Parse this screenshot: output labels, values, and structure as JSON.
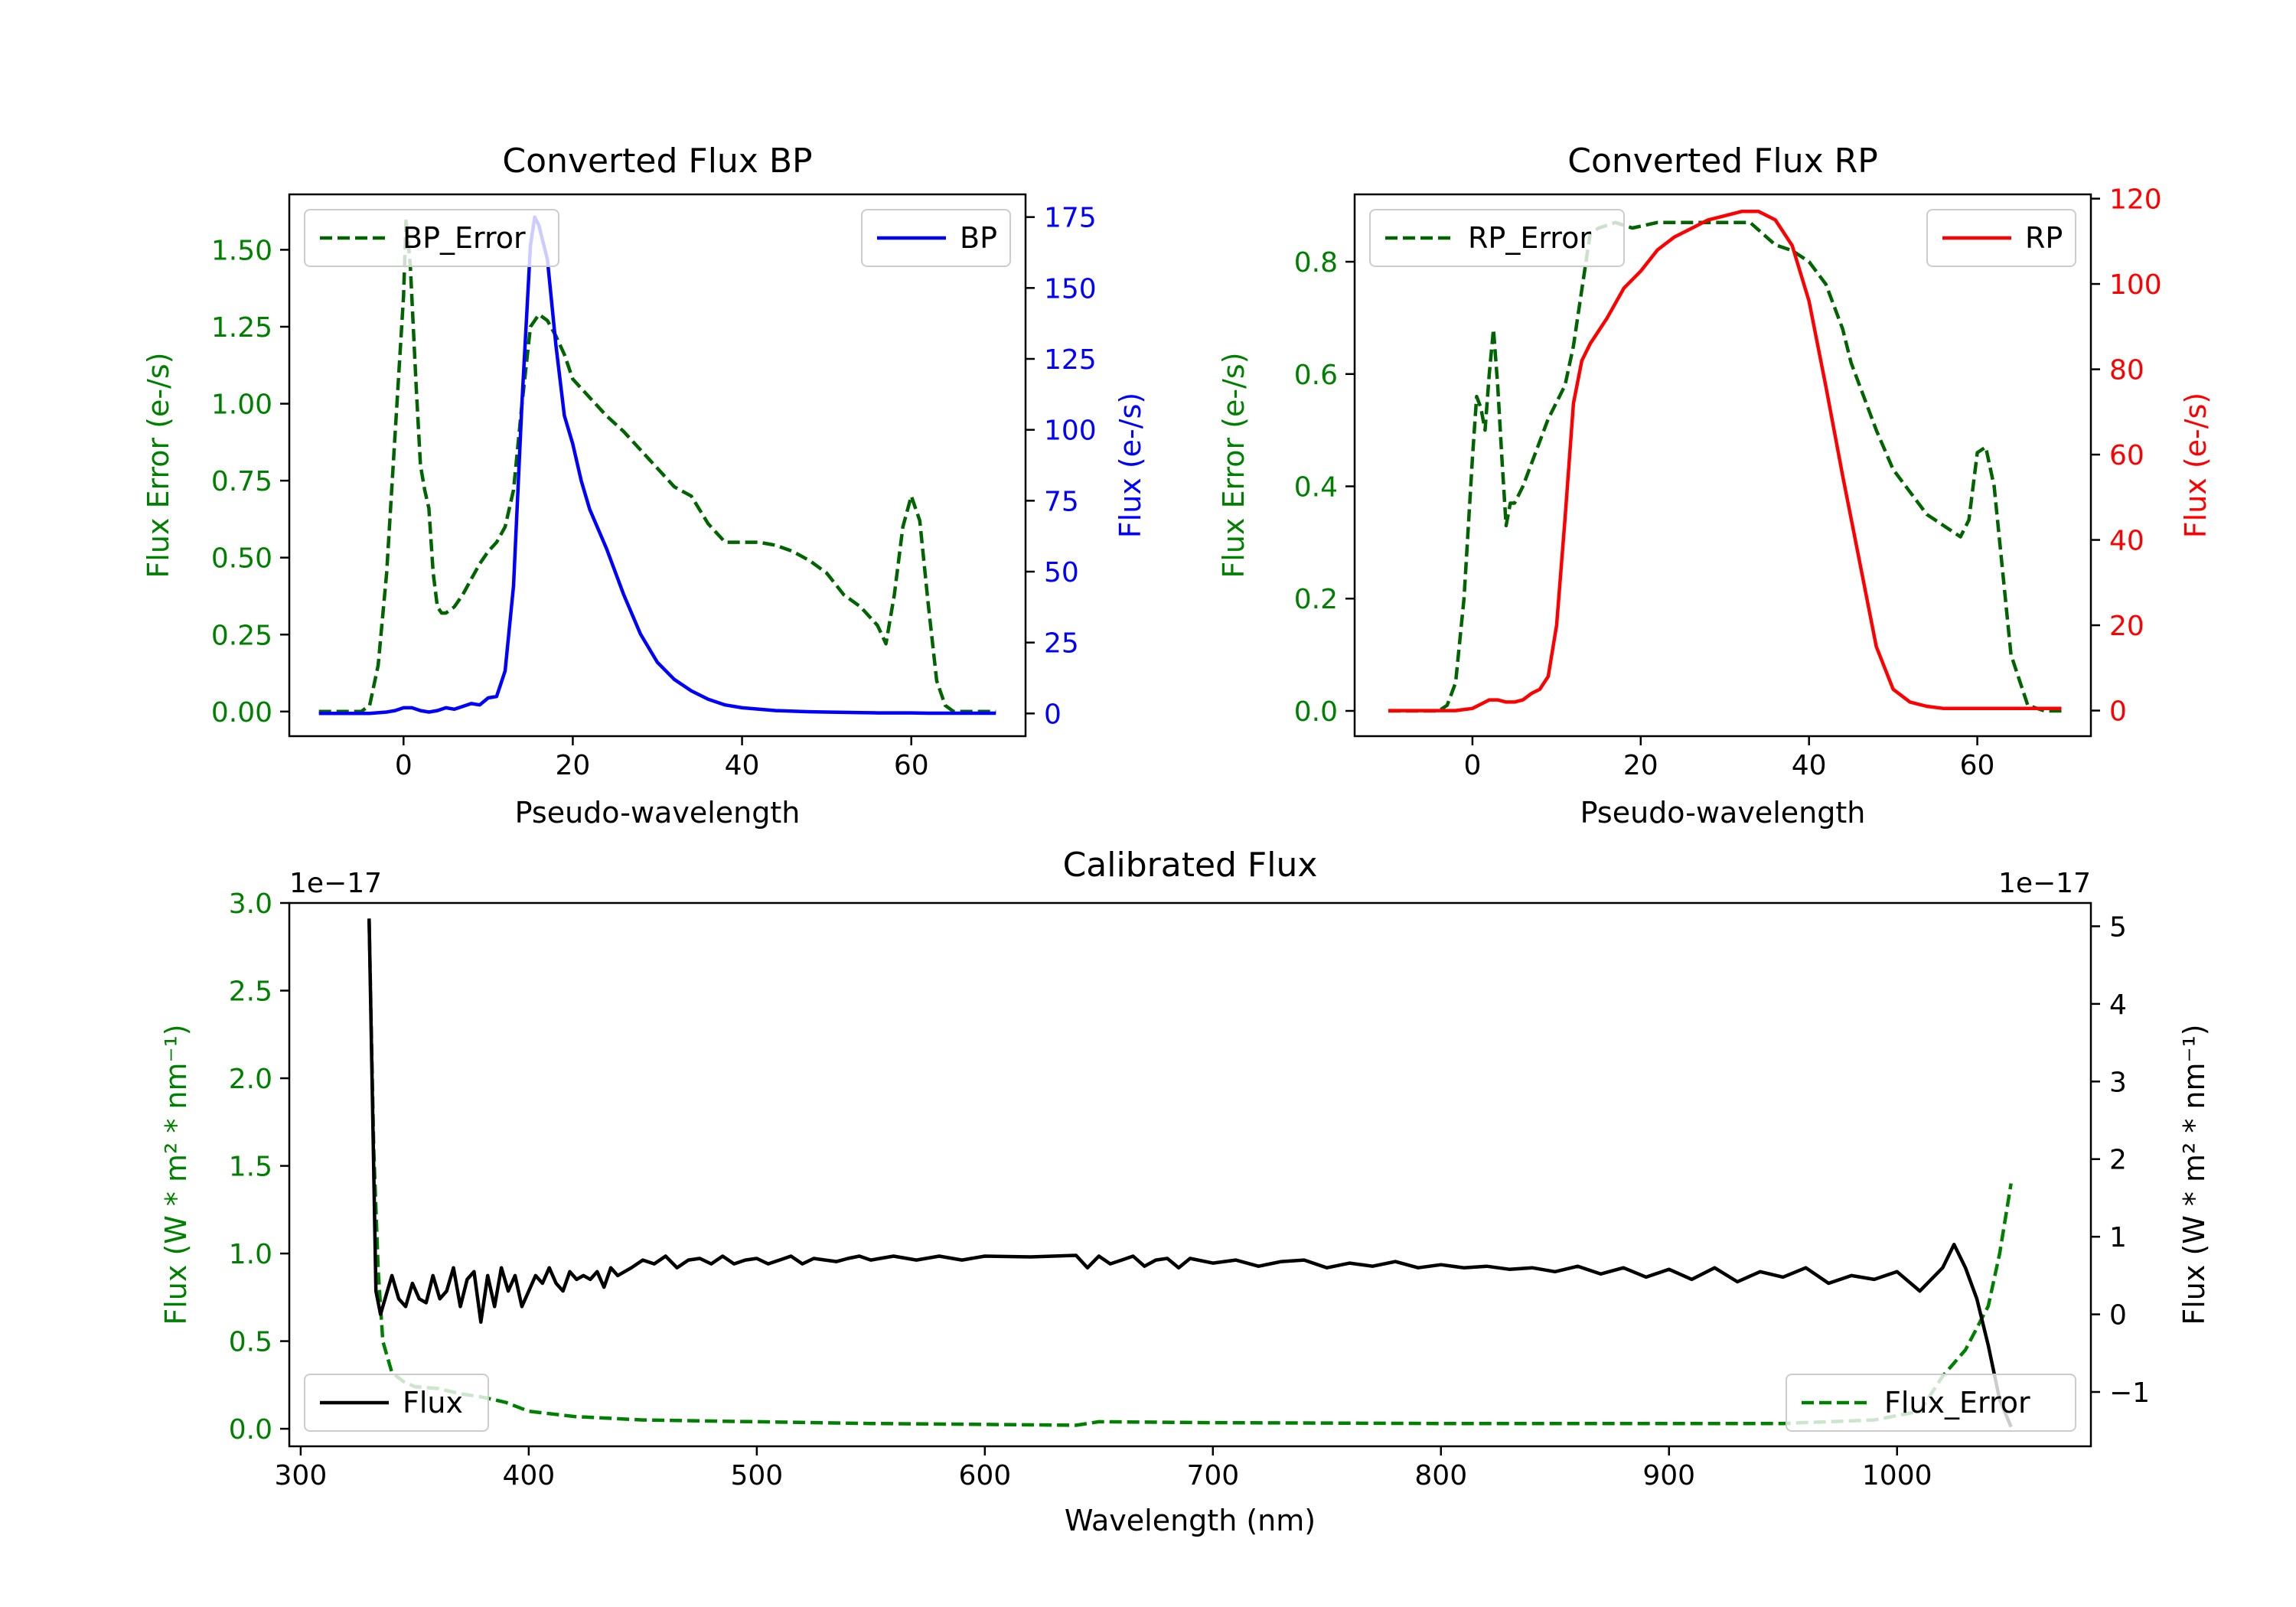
{
  "chart_data": [
    {
      "type": "line",
      "title": "Converted Flux BP",
      "xlabel": "Pseudo-wavelength",
      "ylabel_left": "Flux Error (e-/s)",
      "ylabel_right": "Flux (e-/s)",
      "xlim": [
        -13.5,
        73.5
      ],
      "ylim_left": [
        -0.08,
        1.68
      ],
      "ylim_right": [
        -8,
        183
      ],
      "xticks": [
        0,
        20,
        40,
        60
      ],
      "yticks_left": [
        0.0,
        0.25,
        0.5,
        0.75,
        1.0,
        1.25,
        1.5
      ],
      "yticks_right": [
        0,
        25,
        50,
        75,
        100,
        125,
        150,
        175
      ],
      "colors": {
        "left_axis": "#008000",
        "right_axis": "#0000ff"
      },
      "series": [
        {
          "name": "BP_Error",
          "axis": "left",
          "style": "dashed",
          "color": "#006400",
          "x": [
            -10,
            -5,
            -4,
            -3,
            -2,
            -1,
            0,
            0.3,
            0.8,
            1.5,
            2,
            2.5,
            3,
            3.5,
            4,
            4.5,
            5,
            6,
            7,
            8,
            9,
            10,
            11,
            12,
            13,
            14,
            15,
            16,
            17,
            18,
            19,
            20,
            22,
            24,
            26,
            28,
            30,
            32,
            34,
            36,
            38,
            40,
            42,
            44,
            46,
            48,
            50,
            52,
            54,
            56,
            57,
            58,
            59,
            60,
            61,
            62,
            63,
            64,
            65,
            66,
            68,
            70
          ],
          "values": [
            0,
            0,
            0.02,
            0.15,
            0.45,
            0.9,
            1.35,
            1.6,
            1.45,
            1.05,
            0.8,
            0.72,
            0.66,
            0.45,
            0.34,
            0.32,
            0.32,
            0.34,
            0.38,
            0.43,
            0.48,
            0.52,
            0.55,
            0.6,
            0.72,
            1.0,
            1.25,
            1.29,
            1.27,
            1.22,
            1.16,
            1.08,
            1.02,
            0.96,
            0.91,
            0.85,
            0.79,
            0.73,
            0.7,
            0.61,
            0.55,
            0.55,
            0.55,
            0.54,
            0.52,
            0.49,
            0.45,
            0.38,
            0.34,
            0.28,
            0.22,
            0.38,
            0.6,
            0.7,
            0.62,
            0.35,
            0.1,
            0.02,
            0,
            0,
            0,
            0
          ]
        },
        {
          "name": "BP",
          "axis": "right",
          "style": "solid",
          "color": "#0000ff",
          "x": [
            -10,
            -4,
            -2,
            -1,
            0,
            1,
            2,
            3,
            4,
            5,
            6,
            7,
            8,
            9,
            10,
            11,
            12,
            13,
            14,
            15,
            15.5,
            16,
            17,
            18,
            19,
            20,
            21,
            22,
            24,
            26,
            28,
            30,
            32,
            34,
            36,
            38,
            40,
            42,
            44,
            46,
            48,
            50,
            52,
            54,
            56,
            58,
            60,
            62,
            64,
            66,
            68,
            70
          ],
          "values": [
            0,
            0,
            0.5,
            1,
            2,
            2,
            1,
            0.5,
            1,
            2,
            1.5,
            2.5,
            3.5,
            3,
            5.5,
            6,
            15,
            45,
            110,
            165,
            175,
            172,
            160,
            130,
            105,
            95,
            82,
            72,
            58,
            42,
            28,
            18,
            12,
            8,
            5,
            3,
            2,
            1.5,
            1,
            0.8,
            0.6,
            0.5,
            0.4,
            0.3,
            0.2,
            0.2,
            0.2,
            0.1,
            0.1,
            0.1,
            0.1,
            0.1
          ]
        }
      ],
      "legend": {
        "BP_Error": "upper left",
        "BP": "upper right"
      }
    },
    {
      "type": "line",
      "title": "Converted Flux RP",
      "xlabel": "Pseudo-wavelength",
      "ylabel_left": "Flux Error (e-/s)",
      "ylabel_right": "Flux (e-/s)",
      "xlim": [
        -14,
        73.5
      ],
      "ylim_left": [
        -0.045,
        0.92
      ],
      "ylim_right": [
        -6,
        121
      ],
      "xticks": [
        0,
        20,
        40,
        60
      ],
      "yticks_left": [
        0.0,
        0.2,
        0.4,
        0.6,
        0.8
      ],
      "yticks_right": [
        0,
        20,
        40,
        60,
        80,
        100,
        120
      ],
      "colors": {
        "left_axis": "#008000",
        "right_axis": "#ff0000"
      },
      "series": [
        {
          "name": "RP_Error",
          "axis": "left",
          "style": "dashed",
          "color": "#006400",
          "x": [
            -10,
            -5,
            -4,
            -3,
            -2,
            -1,
            0,
            0.5,
            1,
            1.5,
            2,
            2.5,
            3,
            3.5,
            4,
            4.5,
            5,
            6,
            7,
            8,
            9,
            10,
            11,
            12,
            13,
            14,
            15,
            17,
            19,
            22,
            25,
            28,
            30,
            33,
            36,
            38,
            40,
            42,
            43,
            44,
            45,
            46,
            48,
            50,
            52,
            54,
            55,
            56,
            57,
            58,
            59,
            60,
            61,
            62,
            63,
            64,
            66,
            68,
            70
          ],
          "values": [
            0,
            0,
            0,
            0.01,
            0.05,
            0.2,
            0.45,
            0.56,
            0.54,
            0.5,
            0.6,
            0.68,
            0.58,
            0.45,
            0.33,
            0.37,
            0.37,
            0.4,
            0.44,
            0.48,
            0.52,
            0.55,
            0.58,
            0.65,
            0.75,
            0.85,
            0.86,
            0.87,
            0.86,
            0.87,
            0.87,
            0.87,
            0.87,
            0.87,
            0.83,
            0.82,
            0.8,
            0.76,
            0.72,
            0.68,
            0.62,
            0.58,
            0.5,
            0.43,
            0.39,
            0.35,
            0.34,
            0.33,
            0.32,
            0.31,
            0.34,
            0.46,
            0.47,
            0.4,
            0.25,
            0.1,
            0.01,
            0,
            0
          ]
        },
        {
          "name": "RP",
          "axis": "right",
          "style": "solid",
          "color": "#ff0000",
          "x": [
            -10,
            -4,
            -2,
            0,
            1,
            2,
            3,
            4,
            5,
            6,
            7,
            8,
            9,
            10,
            11,
            12,
            13,
            14,
            16,
            18,
            20,
            22,
            24,
            26,
            28,
            30,
            32,
            34,
            36,
            38,
            40,
            42,
            44,
            46,
            48,
            50,
            52,
            54,
            56,
            58,
            60,
            62,
            64,
            66,
            68,
            70
          ],
          "values": [
            0,
            0,
            0,
            0.5,
            1.5,
            2.5,
            2.5,
            2,
            2,
            2.5,
            4,
            5,
            8,
            20,
            45,
            72,
            82,
            86,
            92,
            99,
            103,
            108,
            111,
            113,
            115,
            116,
            117,
            117,
            115,
            109,
            96,
            76,
            55,
            35,
            15,
            5,
            2,
            1,
            0.5,
            0.5,
            0.5,
            0.5,
            0.5,
            0.5,
            0.5,
            0.5
          ]
        }
      ],
      "legend": {
        "RP_Error": "upper left",
        "RP": "upper right"
      }
    },
    {
      "type": "line",
      "title": "Calibrated Flux",
      "xlabel": "Wavelength (nm)",
      "ylabel_left": "Flux (W * m² * nm⁻¹)",
      "ylabel_right": "Flux (W * m² * nm⁻¹)",
      "xlim": [
        295,
        1085
      ],
      "ylim_left": [
        -0.1,
        3.0
      ],
      "ylim_right": [
        -1.7,
        5.3
      ],
      "xticks": [
        300,
        400,
        500,
        600,
        700,
        800,
        900,
        1000
      ],
      "yticks_left": [
        0.0,
        0.5,
        1.0,
        1.5,
        2.0,
        2.5,
        3.0
      ],
      "yticks_right": [
        -1,
        0,
        1,
        2,
        3,
        4,
        5
      ],
      "offset_label_left": "1e−17",
      "offset_label_right": "1e−17",
      "colors": {
        "left_axis": "#008000",
        "right_axis": "#000000"
      },
      "series": [
        {
          "name": "Flux_Error",
          "axis": "left",
          "style": "dashed",
          "color": "#008000",
          "x": [
            330,
            332,
            334,
            336,
            340,
            345,
            350,
            360,
            370,
            380,
            390,
            400,
            420,
            450,
            500,
            550,
            600,
            640,
            650,
            700,
            800,
            900,
            950,
            990,
            1010,
            1020,
            1030,
            1040,
            1045,
            1050
          ],
          "values": [
            2.9,
            1.6,
            0.9,
            0.5,
            0.32,
            0.27,
            0.24,
            0.23,
            0.2,
            0.18,
            0.15,
            0.1,
            0.07,
            0.05,
            0.04,
            0.03,
            0.025,
            0.02,
            0.04,
            0.035,
            0.03,
            0.03,
            0.03,
            0.05,
            0.1,
            0.3,
            0.45,
            0.7,
            1.0,
            1.4
          ]
        },
        {
          "name": "Flux",
          "axis": "right",
          "style": "solid",
          "color": "#000000",
          "x": [
            330,
            333,
            335,
            338,
            340,
            343,
            346,
            349,
            352,
            355,
            358,
            361,
            364,
            367,
            370,
            373,
            376,
            379,
            382,
            385,
            388,
            391,
            394,
            397,
            400,
            403,
            406,
            409,
            412,
            415,
            418,
            421,
            424,
            427,
            430,
            433,
            436,
            439,
            442,
            445,
            450,
            455,
            460,
            465,
            470,
            475,
            480,
            485,
            490,
            495,
            500,
            505,
            510,
            515,
            520,
            525,
            530,
            535,
            540,
            545,
            550,
            560,
            570,
            580,
            590,
            600,
            620,
            640,
            645,
            650,
            655,
            660,
            665,
            670,
            675,
            680,
            685,
            690,
            700,
            710,
            720,
            730,
            740,
            750,
            760,
            770,
            780,
            790,
            800,
            810,
            820,
            830,
            840,
            850,
            860,
            870,
            880,
            890,
            900,
            910,
            920,
            930,
            940,
            950,
            960,
            970,
            980,
            990,
            1000,
            1010,
            1020,
            1025,
            1030,
            1035,
            1040,
            1045,
            1050
          ],
          "values": [
            5.1,
            0.3,
            0,
            0.3,
            0.5,
            0.2,
            0.1,
            0.4,
            0.2,
            0.15,
            0.5,
            0.2,
            0.3,
            0.6,
            0.1,
            0.45,
            0.55,
            -0.1,
            0.5,
            0.1,
            0.6,
            0.3,
            0.5,
            0.1,
            0.3,
            0.5,
            0.4,
            0.6,
            0.4,
            0.3,
            0.55,
            0.45,
            0.5,
            0.45,
            0.55,
            0.35,
            0.6,
            0.5,
            0.55,
            0.6,
            0.7,
            0.65,
            0.75,
            0.6,
            0.7,
            0.72,
            0.65,
            0.75,
            0.65,
            0.7,
            0.72,
            0.65,
            0.7,
            0.75,
            0.65,
            0.72,
            0.7,
            0.68,
            0.72,
            0.75,
            0.7,
            0.75,
            0.7,
            0.75,
            0.7,
            0.75,
            0.74,
            0.76,
            0.6,
            0.75,
            0.65,
            0.7,
            0.75,
            0.62,
            0.7,
            0.72,
            0.6,
            0.72,
            0.66,
            0.7,
            0.62,
            0.68,
            0.7,
            0.6,
            0.66,
            0.62,
            0.68,
            0.6,
            0.64,
            0.6,
            0.62,
            0.58,
            0.6,
            0.55,
            0.62,
            0.52,
            0.6,
            0.48,
            0.58,
            0.45,
            0.6,
            0.42,
            0.55,
            0.48,
            0.6,
            0.4,
            0.5,
            0.45,
            0.55,
            0.3,
            0.6,
            0.9,
            0.6,
            0.2,
            -0.4,
            -1.1,
            -1.45
          ]
        }
      ],
      "legend": {
        "Flux": "lower left",
        "Flux_Error": "lower right"
      }
    }
  ]
}
